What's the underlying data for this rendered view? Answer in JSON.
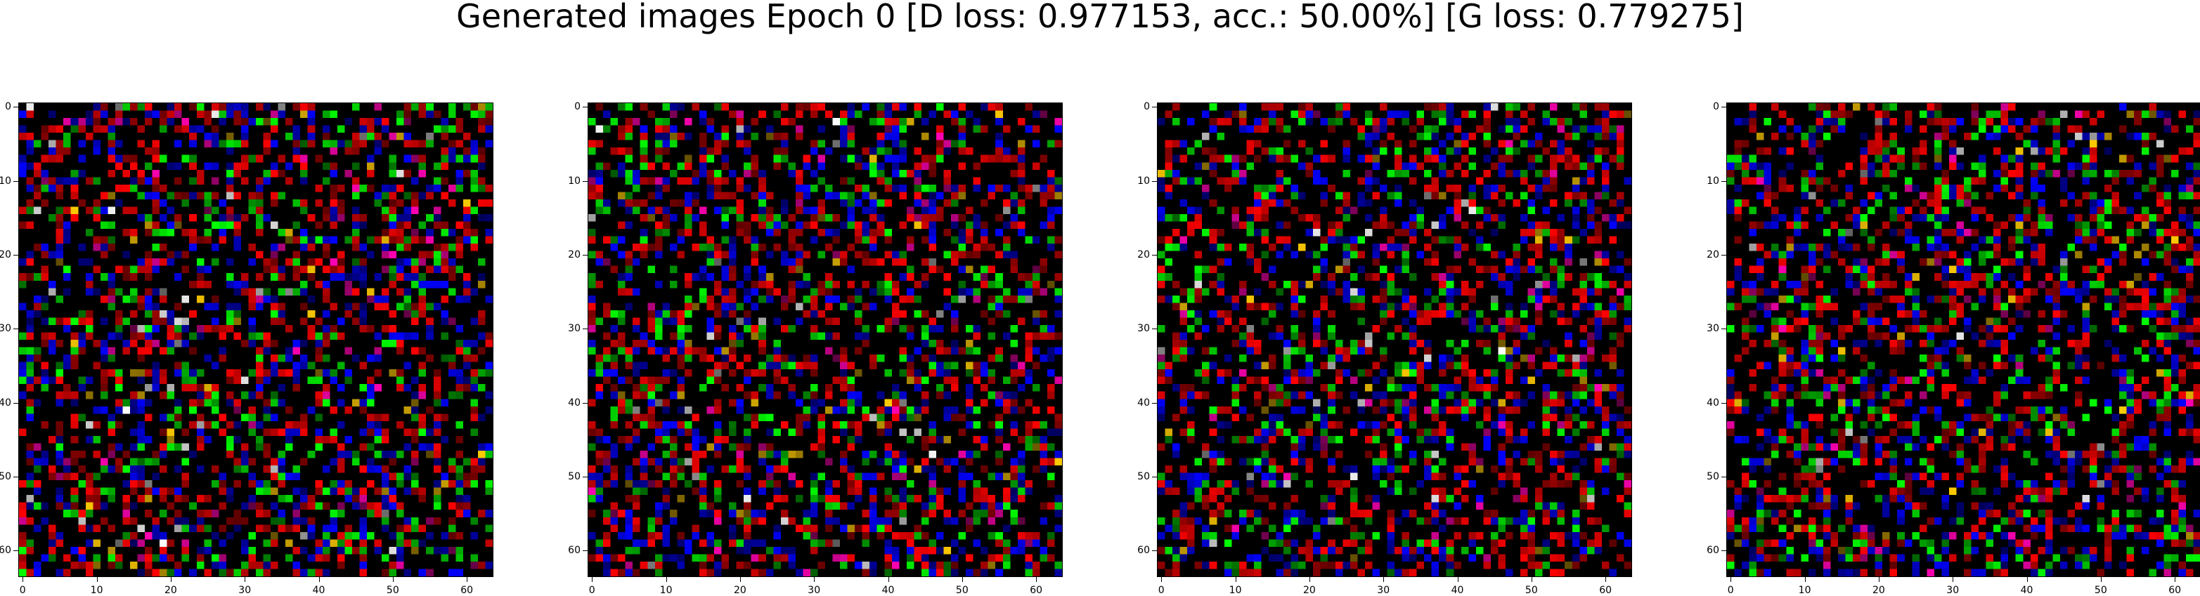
{
  "figure": {
    "title": "Generated images Epoch 0 [D loss: 0.977153, acc.: 50.00%] [G loss: 0.779275]"
  },
  "panels": [
    {
      "name": "generated-image-1"
    },
    {
      "name": "generated-image-2"
    },
    {
      "name": "generated-image-3"
    },
    {
      "name": "generated-image-4"
    }
  ],
  "axes": {
    "x_ticks": [
      "0",
      "10",
      "20",
      "30",
      "40",
      "50",
      "60"
    ],
    "y_ticks": [
      "0",
      "10",
      "20",
      "30",
      "40",
      "50",
      "60"
    ],
    "tick_values": [
      0,
      10,
      20,
      30,
      40,
      50,
      60
    ],
    "pixel_grid": 64
  },
  "colors": {
    "background": "#ffffff",
    "image_background": "#000000",
    "noise_palette": [
      "#ff0000",
      "#00ff00",
      "#0000ff",
      "#ff00ff",
      "#ffff00",
      "#00ffff",
      "#ffffff"
    ]
  }
}
